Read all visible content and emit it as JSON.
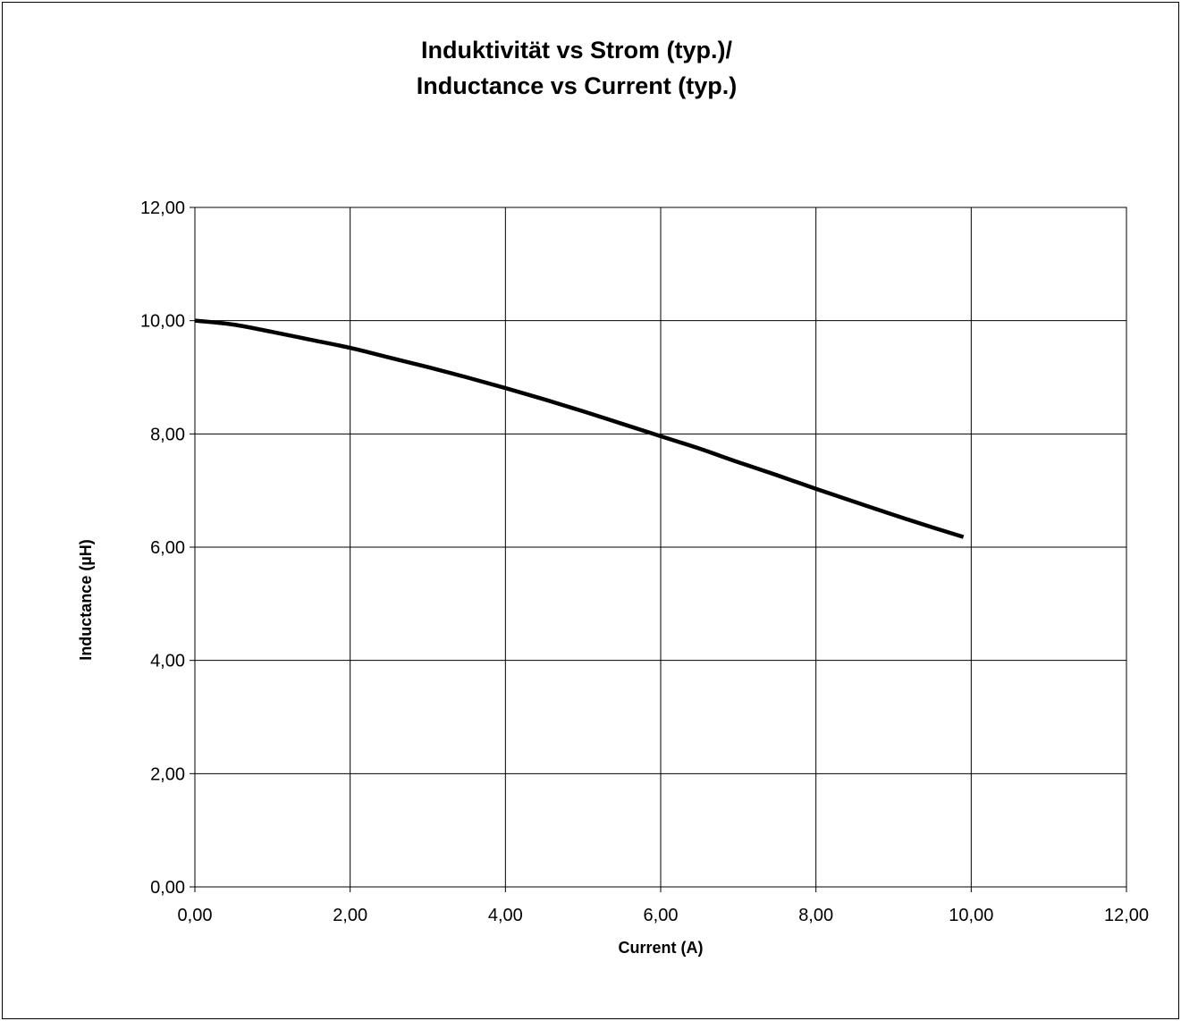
{
  "chart_data": {
    "type": "line",
    "title": [
      "Induktivität vs Strom (typ.)/",
      "Inductance vs Current (typ.)"
    ],
    "xlabel": "Current (A)",
    "ylabel": "Inductance (µH)",
    "xlim": [
      0,
      12
    ],
    "ylim": [
      0,
      12
    ],
    "xticks": [
      0,
      2,
      4,
      6,
      8,
      10,
      12
    ],
    "yticks": [
      0,
      2,
      4,
      6,
      8,
      10,
      12
    ],
    "xtick_labels": [
      "0,00",
      "2,00",
      "4,00",
      "6,00",
      "8,00",
      "10,00",
      "12,00"
    ],
    "ytick_labels": [
      "0,00",
      "2,00",
      "4,00",
      "6,00",
      "8,00",
      "10,00",
      "12,00"
    ],
    "grid": true,
    "legend": "none",
    "series": [
      {
        "color": "#000000",
        "x": [
          0,
          0.5,
          1,
          1.5,
          2,
          2.5,
          3,
          3.5,
          4,
          4.5,
          5,
          5.5,
          6,
          6.5,
          7,
          7.5,
          8,
          8.5,
          9,
          9.5,
          9.9
        ],
        "y": [
          10.0,
          9.93,
          9.8,
          9.66,
          9.52,
          9.35,
          9.18,
          9.0,
          8.81,
          8.61,
          8.4,
          8.18,
          7.96,
          7.74,
          7.5,
          7.27,
          7.03,
          6.8,
          6.57,
          6.35,
          6.18
        ]
      }
    ]
  }
}
